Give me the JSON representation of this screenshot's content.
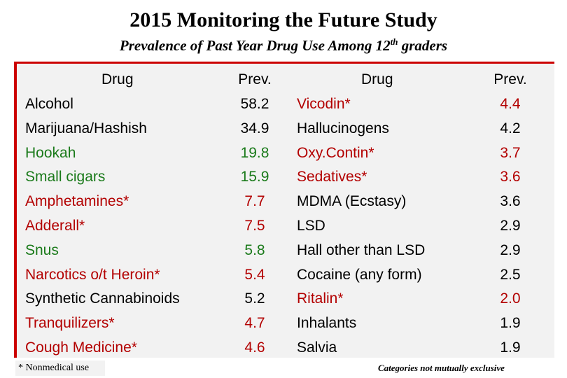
{
  "title": "2015 Monitoring the Future Study",
  "subtitle": {
    "main": "Prevalence of Past Year Drug Use Among 12",
    "sup": "th",
    "end": " graders"
  },
  "headers": {
    "drug": "Drug",
    "prev": "Prev."
  },
  "colors": {
    "black": "#000000",
    "green": "#1a7a1a",
    "red": "#b30000",
    "accent": "#cc0000",
    "panel": "#f2f2f2"
  },
  "left_rows": [
    {
      "drug": "Alcohol",
      "prev": "58.2",
      "color": "black"
    },
    {
      "drug": "Marijuana/Hashish",
      "prev": "34.9",
      "color": "black"
    },
    {
      "drug": "Hookah",
      "prev": "19.8",
      "color": "green"
    },
    {
      "drug": "Small cigars",
      "prev": "15.9",
      "color": "green"
    },
    {
      "drug": "Amphetamines*",
      "prev": "7.7",
      "color": "red"
    },
    {
      "drug": "Adderall*",
      "prev": "7.5",
      "color": "red"
    },
    {
      "drug": "Snus",
      "prev": "5.8",
      "color": "green"
    },
    {
      "drug": "Narcotics o/t Heroin*",
      "prev": "5.4",
      "color": "red"
    },
    {
      "drug": "Synthetic Cannabinoids",
      "prev": "5.2",
      "color": "black"
    },
    {
      "drug": "Tranquilizers*",
      "prev": "4.7",
      "color": "red"
    },
    {
      "drug": "Cough Medicine*",
      "prev": "4.6",
      "color": "red"
    }
  ],
  "right_rows": [
    {
      "drug": "Vicodin*",
      "prev": "4.4",
      "color": "red"
    },
    {
      "drug": "Hallucinogens",
      "prev": "4.2",
      "color": "black"
    },
    {
      "drug": "Oxy.Contin*",
      "prev": "3.7",
      "color": "red"
    },
    {
      "drug": "Sedatives*",
      "prev": "3.6",
      "color": "red"
    },
    {
      "drug": "MDMA (Ecstasy)",
      "prev": "3.6",
      "color": "black"
    },
    {
      "drug": "LSD",
      "prev": "2.9",
      "color": "black"
    },
    {
      "drug": "Hall other than LSD",
      "prev": "2.9",
      "color": "black"
    },
    {
      "drug": "Cocaine (any form)",
      "prev": "2.5",
      "color": "black"
    },
    {
      "drug": "Ritalin*",
      "prev": "2.0",
      "color": "red"
    },
    {
      "drug": "Inhalants",
      "prev": "1.9",
      "color": "black"
    },
    {
      "drug": "Salvia",
      "prev": "1.9",
      "color": "black"
    }
  ],
  "footnote": "* Nonmedical use",
  "note": "Categories not mutually exclusive"
}
